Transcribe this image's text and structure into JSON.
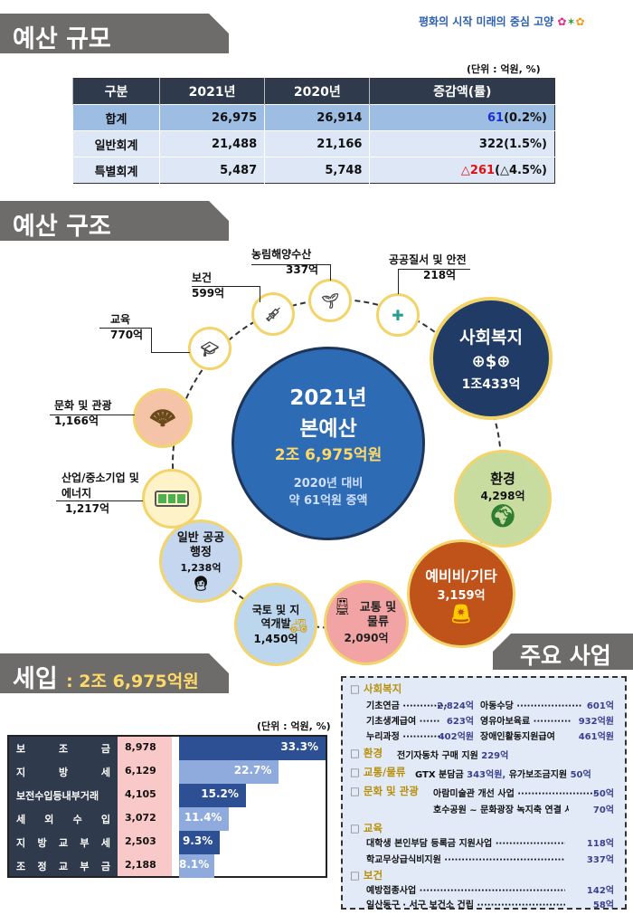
{
  "sections": {
    "budget_scale": "예산 규모",
    "budget_structure": "예산 구조",
    "main_projects": "주요 사업",
    "revenue": "세입",
    "revenue_total": ": 2조 6,975억원"
  },
  "logo": {
    "text": "평화의 시작 미래의 중심 고양"
  },
  "unit": "(단위 : 억원, %)",
  "scale_table": {
    "headers": [
      "구분",
      "2021년",
      "2020년",
      "증감액(률)"
    ],
    "rows": [
      {
        "name": "합계",
        "y2021": "26,975",
        "y2020": "26,914",
        "change": "61",
        "rate": "(0.2%)",
        "change_color": "#1a2fd6"
      },
      {
        "name": "일반회계",
        "y2021": "21,488",
        "y2020": "21,166",
        "change": "322",
        "rate": "(1.5%)"
      },
      {
        "name": "특별회계",
        "y2021": "5,487",
        "y2020": "5,748",
        "change": "△261",
        "rate": "(△4.5%)",
        "change_color": "#dd1111"
      }
    ]
  },
  "structure": {
    "center": {
      "year": "2021년",
      "title": "본예산",
      "amount": "2조 6,975억원",
      "compare1": "2020년 대비",
      "compare2": "약 61억원 증액"
    },
    "items": [
      {
        "name": "사회복지",
        "amount": "1조433억",
        "icon": "welfare-hands-icon",
        "color": "#1f3b66"
      },
      {
        "name": "환경",
        "amount": "4,298억",
        "icon": "globe-plant-icon",
        "color": "#c8dca0"
      },
      {
        "name": "예비비/기타",
        "amount": "3,159억",
        "icon": "siren-icon",
        "color": "#c0531a"
      },
      {
        "name": "교통 및 물류",
        "amount": "2,090억",
        "icon": "train-icon",
        "color": "#f2a3a3"
      },
      {
        "name": "국토 및 지역개발",
        "amount": "1,450억",
        "icon": "excavator-icon",
        "color": "#bcd6ee"
      },
      {
        "name": "일반 공공행정",
        "amount": "1,238억",
        "icon": "office-worker-icon",
        "color": "#c5d7ee"
      },
      {
        "name": "산업/중소기업 및 에너지",
        "amount": "1,217억",
        "icon": "battery-icon",
        "color": "#fdf2c8"
      },
      {
        "name": "문화 및 관광",
        "amount": "1,166억",
        "icon": "fan-dancer-icon",
        "color": "#f4c3a8"
      },
      {
        "name": "교육",
        "amount": "770억",
        "icon": "graduation-cap-icon"
      },
      {
        "name": "보건",
        "amount": "599억",
        "icon": "syringe-icon"
      },
      {
        "name": "농림해양수산",
        "amount": "337억",
        "icon": "farmer-plant-icon"
      },
      {
        "name": "공공질서 및 안전",
        "amount": "218억",
        "icon": "medical-cross-icon"
      }
    ]
  },
  "revenue_table": {
    "rows": [
      {
        "name": "보조금",
        "value": "8,978",
        "pct": 33.3,
        "pct_label": "33.3%"
      },
      {
        "name": "지방세",
        "value": "6,129",
        "pct": 22.7,
        "pct_label": "22.7%"
      },
      {
        "name": "보전수입등내부거래",
        "value": "4,105",
        "pct": 15.2,
        "pct_label": "15.2%"
      },
      {
        "name": "세외수입",
        "value": "3,072",
        "pct": 11.4,
        "pct_label": "11.4%"
      },
      {
        "name": "지방교부세",
        "value": "2,503",
        "pct": 9.3,
        "pct_label": "9.3%"
      },
      {
        "name": "조정교부금",
        "value": "2,188",
        "pct": 8.1,
        "pct_label": "8.1%"
      }
    ],
    "colors": [
      "#2d4f94",
      "#8faadc"
    ]
  },
  "projects": {
    "welfare": {
      "title": "사회복지",
      "items": [
        [
          "기초연금 ·············",
          "2,824억"
        ],
        [
          "아동수당 ···················",
          "601억"
        ],
        [
          "기초생계급여 ······",
          "623억"
        ],
        [
          "영유아보육료 ···········",
          "932억원"
        ],
        [
          "누리과정 ·············",
          "402억원"
        ],
        [
          "장애인활동지원급여",
          "461억원"
        ]
      ]
    },
    "env": {
      "title": "환경",
      "text": "전기자동차 구매 지원",
      "amount": "229억"
    },
    "traffic": {
      "title": "교통/물류",
      "text1": "GTX 분담금",
      "amount1": "343억원,",
      "text2": "유가보조금지원",
      "amount2": "50억"
    },
    "culture": {
      "title": "문화 및 관광",
      "items": [
        [
          "아람미술관 개선 사업 ·······················",
          "50억"
        ],
        [
          "호수공원 ~ 문화광장 녹지축 연결 사업 ···",
          "70억"
        ]
      ]
    },
    "edu": {
      "title": "교육",
      "items": [
        [
          "대학생 본인부담 등록금 지원사업 ·······························",
          "118억"
        ],
        [
          "학교무상급식비지원 ···············································",
          "337억"
        ]
      ]
    },
    "health": {
      "title": "보건",
      "items": [
        [
          "예방접종사업 ························································",
          "142억"
        ],
        [
          "일산동구 · 서구 보건소 건립 ······························",
          "58억"
        ]
      ]
    }
  }
}
